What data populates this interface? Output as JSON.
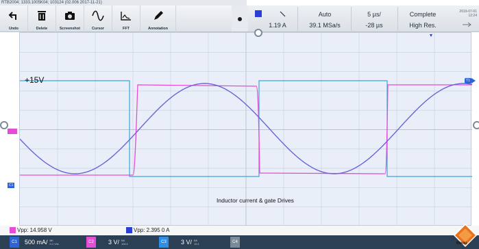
{
  "header": {
    "title": "RTB2004; 1333.1005K04; 103124 (02.006 2017-11-21)"
  },
  "toolbar": {
    "items": [
      {
        "label": "Undo",
        "icon": "undo-icon"
      },
      {
        "label": "Delete",
        "icon": "trash-icon"
      },
      {
        "label": "Screenshot",
        "icon": "camera-icon"
      },
      {
        "label": "Cursor",
        "icon": "cursor-wave-icon"
      },
      {
        "label": "FFT",
        "icon": "fft-icon"
      },
      {
        "label": "Annotation",
        "icon": "pen-icon"
      }
    ]
  },
  "acquisition": {
    "trigger_source_value": "1.19 A",
    "trigger_mode": "Auto",
    "sample_rate": "39.1 MSa/s",
    "timebase": "5 µs/",
    "position": "-28 µs",
    "status": "Complete",
    "mode": "High Res.",
    "date": "2019-07-01",
    "time": "12:24"
  },
  "display": {
    "voltage_marker": "+15V",
    "annotation": "Inductor current & gate Drives",
    "right_marker": "T1",
    "left_marker": "C1"
  },
  "measurements": {
    "vpp_pink": "Vpp: 14.958 V",
    "vpp_blue": "Vpp: 2.395 0 A"
  },
  "channels": [
    {
      "tag": "C1",
      "scale": "500 mA/",
      "sub_top": "BK",
      "sub_bottom": "0.1 V/A",
      "color": "#2c64d6"
    },
    {
      "tag": "C2",
      "scale": "3 V/",
      "sub_top": "BK",
      "sub_bottom": "100:1",
      "color": "#e64dd6"
    },
    {
      "tag": "C3",
      "scale": "3 V/",
      "sub_top": "BK",
      "sub_bottom": "10:1",
      "color": "#2c8ee8"
    },
    {
      "tag": "C4",
      "scale": "",
      "sub_top": "",
      "sub_bottom": "",
      "color": "#7d8a98"
    }
  ],
  "menu": {
    "label": "Menu"
  },
  "colors": {
    "current_trace": "#6b63d6",
    "gate_pink": "#e64dd6",
    "gate_cyan": "#3aa6d8"
  }
}
